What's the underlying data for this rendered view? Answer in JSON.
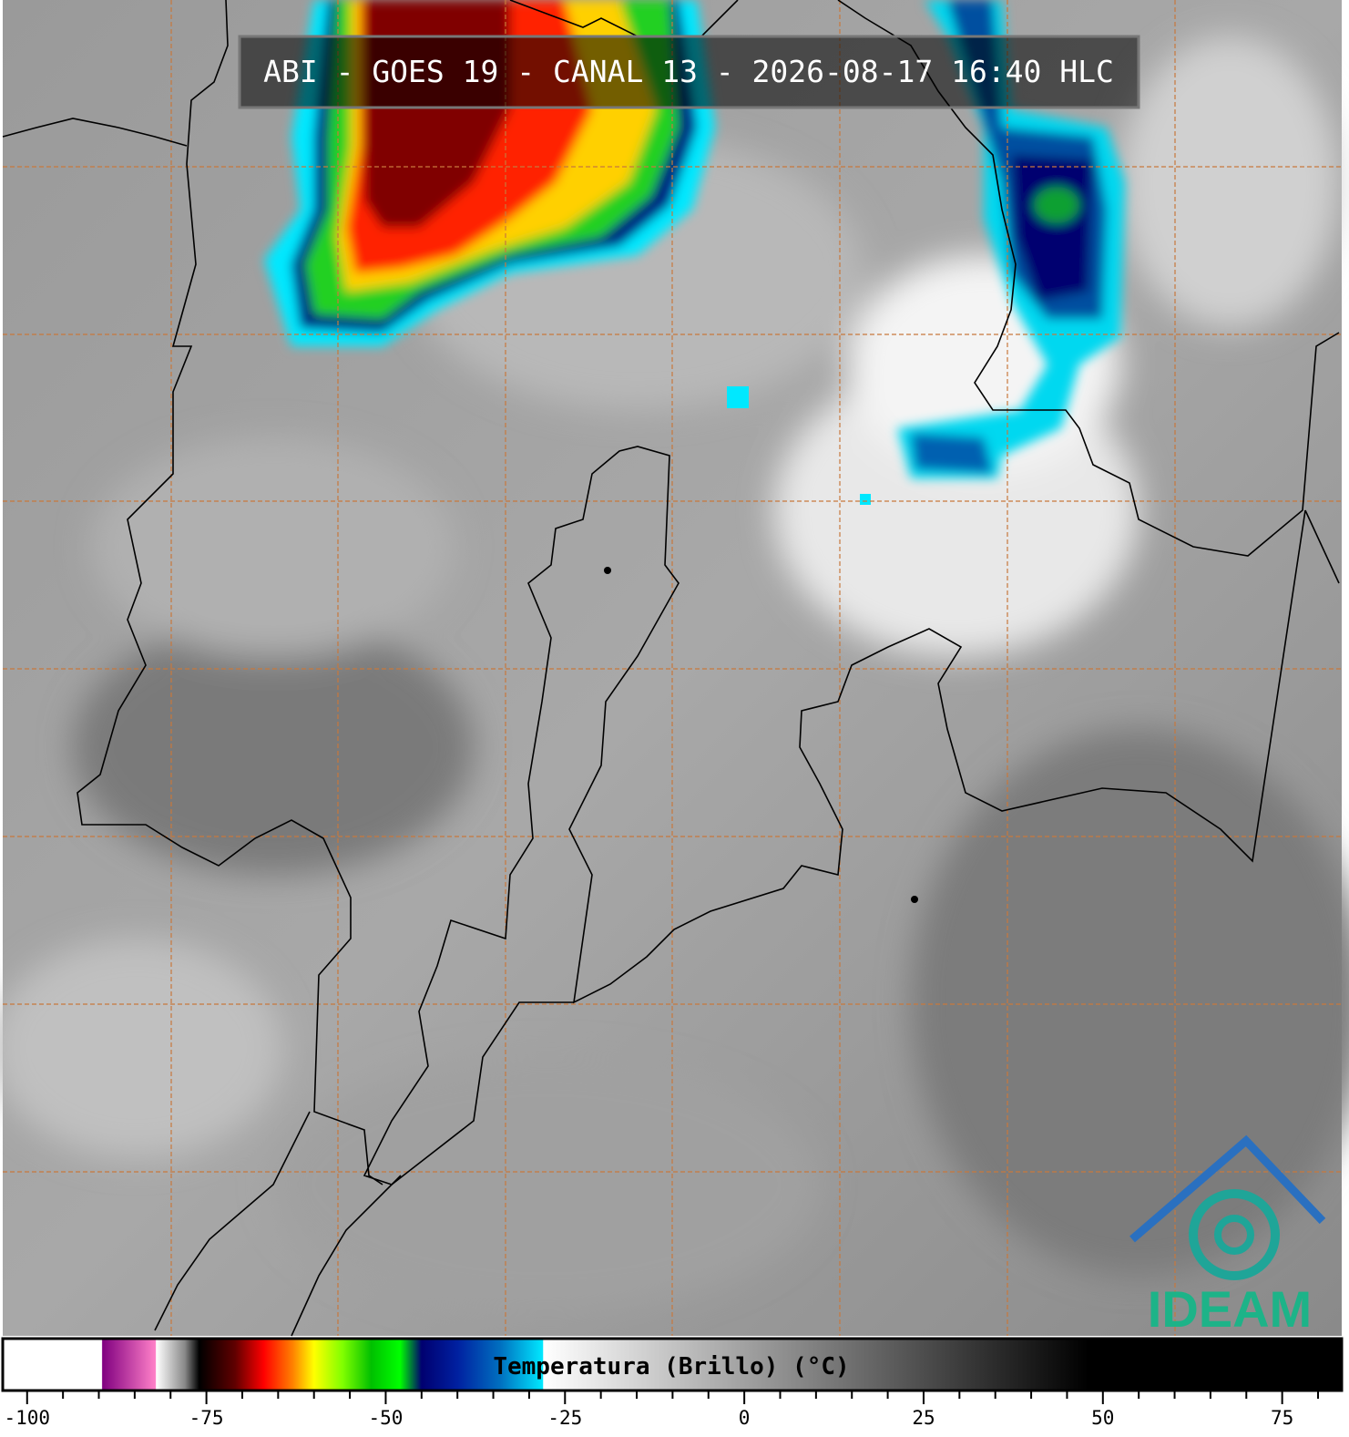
{
  "title": "ABI - GOES 19 - CANAL 13 - 2026-08-17 16:40 HLC",
  "logo_text": "IDEAM",
  "colorbar": {
    "label": "Temperatura (Brillo) (°C)",
    "xlim": [
      -103.4,
      83.3
    ],
    "xticks": [
      -100,
      -75,
      -50,
      -25,
      0,
      25,
      50,
      75
    ],
    "minor_ticks": [
      -95,
      -90,
      -85,
      -80,
      -70,
      -65,
      -60,
      -55,
      -45,
      -40,
      -35,
      -30,
      -20,
      -15,
      -10,
      -5,
      5,
      10,
      15,
      20,
      30,
      35,
      40,
      45,
      55,
      60,
      65,
      70,
      80
    ],
    "stops": [
      {
        "value": -103.4,
        "color": "#ffffff"
      },
      {
        "value": -89.6,
        "color": "#ffffff"
      },
      {
        "value": -89.5,
        "color": "#800080"
      },
      {
        "value": -82.1,
        "color": "#ff80c8"
      },
      {
        "value": -82,
        "color": "#ffffff"
      },
      {
        "value": -78,
        "color": "#888888"
      },
      {
        "value": -76,
        "color": "#000000"
      },
      {
        "value": -71,
        "color": "#600000"
      },
      {
        "value": -67,
        "color": "#ff0000"
      },
      {
        "value": -63,
        "color": "#ff8000"
      },
      {
        "value": -60,
        "color": "#ffff00"
      },
      {
        "value": -56,
        "color": "#80ff00"
      },
      {
        "value": -52,
        "color": "#00c000"
      },
      {
        "value": -48,
        "color": "#00ff00"
      },
      {
        "value": -45,
        "color": "#000070"
      },
      {
        "value": -40,
        "color": "#0020a0"
      },
      {
        "value": -34,
        "color": "#0070c0"
      },
      {
        "value": -28.1,
        "color": "#00e8ff"
      },
      {
        "value": -28,
        "color": "#ffffff"
      },
      {
        "value": 48,
        "color": "#000000"
      },
      {
        "value": 83.3,
        "color": "#000000"
      }
    ]
  }
}
